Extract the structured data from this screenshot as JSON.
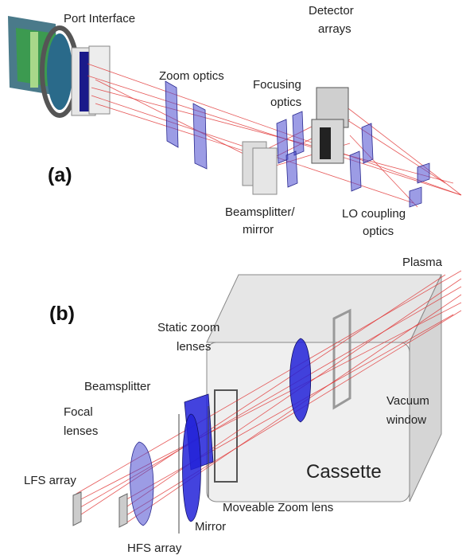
{
  "panels": [
    {
      "label": "(a)",
      "annotations": [
        {
          "lines": [
            "Port Interface"
          ]
        },
        {
          "lines": [
            "Zoom optics"
          ]
        },
        {
          "lines": [
            "Detector",
            "arrays"
          ]
        },
        {
          "lines": [
            "Focusing",
            "optics"
          ]
        },
        {
          "lines": [
            "Beamsplitter/",
            "mirror"
          ]
        },
        {
          "lines": [
            "LO coupling",
            "optics"
          ]
        }
      ]
    },
    {
      "label": "(b)",
      "annotations": [
        {
          "lines": [
            "Plasma"
          ]
        },
        {
          "lines": [
            "Static zoom",
            "lenses"
          ]
        },
        {
          "lines": [
            "Beamsplitter"
          ]
        },
        {
          "lines": [
            "Focal",
            "lenses"
          ]
        },
        {
          "lines": [
            "Vacuum",
            "window"
          ]
        },
        {
          "lines": [
            "Cassette"
          ]
        },
        {
          "lines": [
            "LFS array"
          ]
        },
        {
          "lines": [
            "Moveable Zoom lens"
          ]
        },
        {
          "lines": [
            "Mirror"
          ]
        },
        {
          "lines": [
            "HFS array"
          ]
        }
      ]
    }
  ]
}
